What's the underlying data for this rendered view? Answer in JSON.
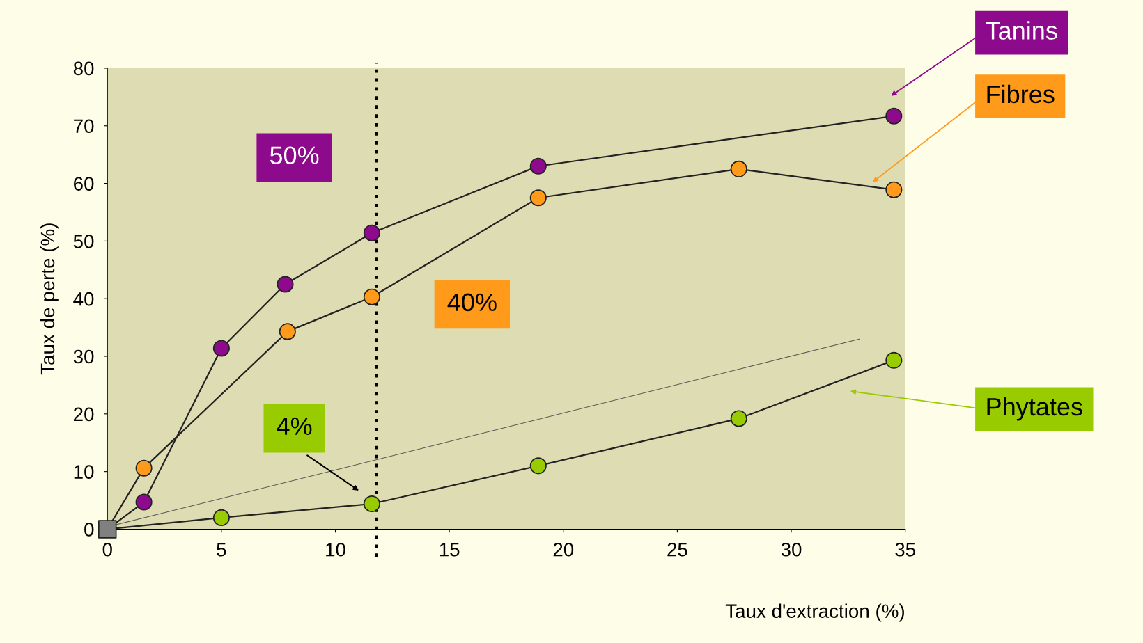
{
  "chart_data": {
    "type": "line",
    "xlabel": "Taux d'extraction (%)",
    "ylabel": "Taux de perte (%)",
    "xlim": [
      0,
      35
    ],
    "xticks": [
      0,
      5,
      10,
      15,
      20,
      25,
      30,
      35
    ],
    "ylim": [
      0,
      80
    ],
    "yticks": [
      0,
      10,
      20,
      30,
      40,
      50,
      60,
      70,
      80
    ],
    "grid": false,
    "legend": false,
    "marker": "circle",
    "line_style": "solid",
    "series": [
      {
        "name": "Tanins",
        "color": "#8e0a8c",
        "x": [
          0,
          1.6,
          5.0,
          7.8,
          11.6,
          18.9,
          34.5
        ],
        "values": [
          0,
          4.7,
          31.4,
          42.5,
          51.4,
          63,
          71.7
        ]
      },
      {
        "name": "Fibres",
        "color": "#ff9a1a",
        "x": [
          0,
          1.6,
          7.9,
          11.6,
          18.9,
          27.7,
          34.5
        ],
        "values": [
          0,
          10.6,
          34.3,
          40.3,
          57.5,
          62.5,
          58.9
        ]
      },
      {
        "name": "Phytates",
        "color": "#99cc00",
        "x": [
          0,
          5.0,
          11.6,
          18.9,
          27.7,
          34.5
        ],
        "values": [
          0,
          2.0,
          4.4,
          11,
          19.2,
          29.3
        ]
      },
      {
        "type": "line",
        "marker": "none",
        "color": "#555555",
        "x": [
          0,
          33
        ],
        "values": [
          0.4,
          33
        ]
      },
      {
        "type": "scatter",
        "marker": "square",
        "color": "#808080",
        "x": [
          0
        ],
        "values": [
          0
        ]
      }
    ],
    "ref_lines": [
      {
        "axis": "x",
        "value": 11.8,
        "color": "#000000",
        "line_style": "dotted"
      }
    ],
    "annotations": [
      "50%",
      "40%",
      "4%"
    ]
  }
}
